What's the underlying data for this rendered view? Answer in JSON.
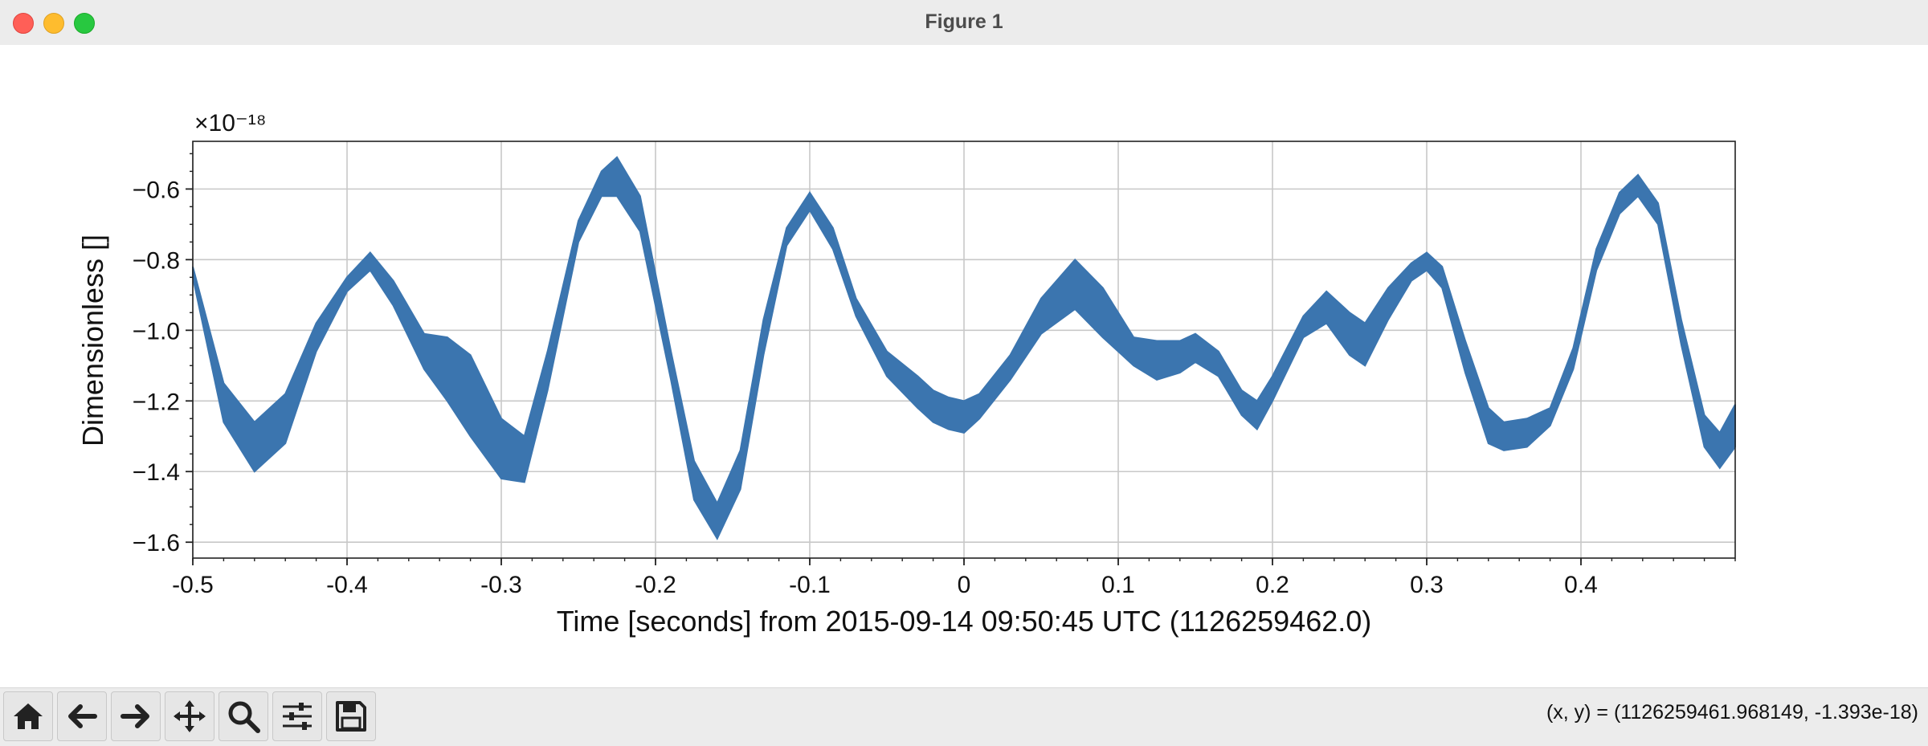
{
  "window": {
    "title": "Figure 1"
  },
  "toolbar": {
    "buttons": [
      {
        "name": "home-button",
        "icon": "home-icon"
      },
      {
        "name": "back-button",
        "icon": "arrow-left-icon"
      },
      {
        "name": "forward-button",
        "icon": "arrow-right-icon"
      },
      {
        "name": "pan-button",
        "icon": "move-icon"
      },
      {
        "name": "zoom-button",
        "icon": "magnifier-icon"
      },
      {
        "name": "configure-subplots-button",
        "icon": "sliders-icon"
      },
      {
        "name": "save-button",
        "icon": "floppy-disk-icon"
      }
    ],
    "coordinates": "(x, y) = (1126259461.968149, -1.393e-18)"
  },
  "chart_data": {
    "type": "area",
    "title": "",
    "xlabel": "Time [seconds] from 2015-09-14 09:50:45 UTC (1126259462.0)",
    "ylabel": "Dimensionless []",
    "y_multiplier": "×10⁻¹⁸",
    "xlim": [
      -0.5,
      0.5
    ],
    "ylim": [
      -1.645,
      -0.465
    ],
    "xticks": [
      -0.5,
      -0.4,
      -0.3,
      -0.2,
      -0.1,
      0,
      0.1,
      0.2,
      0.3,
      0.4
    ],
    "xtick_labels": [
      "-0.5",
      "-0.4",
      "-0.3",
      "-0.2",
      "-0.1",
      "0",
      "0.1",
      "0.2",
      "0.3",
      "0.4"
    ],
    "yticks": [
      -0.6,
      -0.8,
      -1.0,
      -1.2,
      -1.4,
      -1.6
    ],
    "ytick_labels": [
      "−0.6",
      "−0.8",
      "−1.0",
      "−1.2",
      "−1.4",
      "−1.6"
    ],
    "grid": true,
    "color": "#3b75af",
    "series": [
      {
        "x": [
          -0.5,
          -0.48,
          -0.46,
          -0.44,
          -0.42,
          -0.4,
          -0.385,
          -0.37,
          -0.35,
          -0.335,
          -0.32,
          -0.3,
          -0.285,
          -0.27,
          -0.25,
          -0.235,
          -0.225,
          -0.21,
          -0.19,
          -0.175,
          -0.16,
          -0.145,
          -0.13,
          -0.115,
          -0.1,
          -0.085,
          -0.07,
          -0.05,
          -0.03,
          -0.02,
          -0.01,
          0.0,
          0.01,
          0.03,
          0.05,
          0.072,
          0.09,
          0.11,
          0.125,
          0.14,
          0.15,
          0.165,
          0.18,
          0.19,
          0.2,
          0.22,
          0.235,
          0.25,
          0.26,
          0.275,
          0.29,
          0.3,
          0.31,
          0.325,
          0.34,
          0.35,
          0.365,
          0.38,
          0.395,
          0.41,
          0.425,
          0.437,
          0.45,
          0.465,
          0.48,
          0.49,
          0.5
        ],
        "upper": [
          -0.82,
          -1.15,
          -1.26,
          -1.18,
          -0.98,
          -0.85,
          -0.78,
          -0.86,
          -1.01,
          -1.02,
          -1.07,
          -1.25,
          -1.3,
          -1.06,
          -0.69,
          -0.55,
          -0.51,
          -0.62,
          -1.06,
          -1.37,
          -1.49,
          -1.34,
          -0.97,
          -0.71,
          -0.61,
          -0.71,
          -0.91,
          -1.06,
          -1.13,
          -1.17,
          -1.19,
          -1.2,
          -1.18,
          -1.07,
          -0.91,
          -0.8,
          -0.88,
          -1.02,
          -1.03,
          -1.03,
          -1.01,
          -1.06,
          -1.17,
          -1.2,
          -1.13,
          -0.96,
          -0.89,
          -0.95,
          -0.98,
          -0.88,
          -0.81,
          -0.78,
          -0.82,
          -1.03,
          -1.22,
          -1.26,
          -1.25,
          -1.22,
          -1.05,
          -0.77,
          -0.61,
          -0.56,
          -0.64,
          -0.97,
          -1.24,
          -1.29,
          -1.21
        ],
        "lower": [
          -0.85,
          -1.26,
          -1.4,
          -1.32,
          -1.06,
          -0.89,
          -0.83,
          -0.93,
          -1.11,
          -1.2,
          -1.3,
          -1.42,
          -1.43,
          -1.17,
          -0.75,
          -0.62,
          -0.62,
          -0.72,
          -1.14,
          -1.48,
          -1.59,
          -1.45,
          -1.07,
          -0.76,
          -0.66,
          -0.77,
          -0.96,
          -1.13,
          -1.22,
          -1.26,
          -1.28,
          -1.29,
          -1.25,
          -1.14,
          -1.01,
          -0.94,
          -1.02,
          -1.1,
          -1.14,
          -1.12,
          -1.09,
          -1.13,
          -1.24,
          -1.28,
          -1.2,
          -1.02,
          -0.98,
          -1.07,
          -1.1,
          -0.97,
          -0.86,
          -0.83,
          -0.88,
          -1.12,
          -1.32,
          -1.34,
          -1.33,
          -1.27,
          -1.11,
          -0.83,
          -0.67,
          -0.62,
          -0.7,
          -1.04,
          -1.33,
          -1.39,
          -1.33
        ]
      }
    ]
  }
}
